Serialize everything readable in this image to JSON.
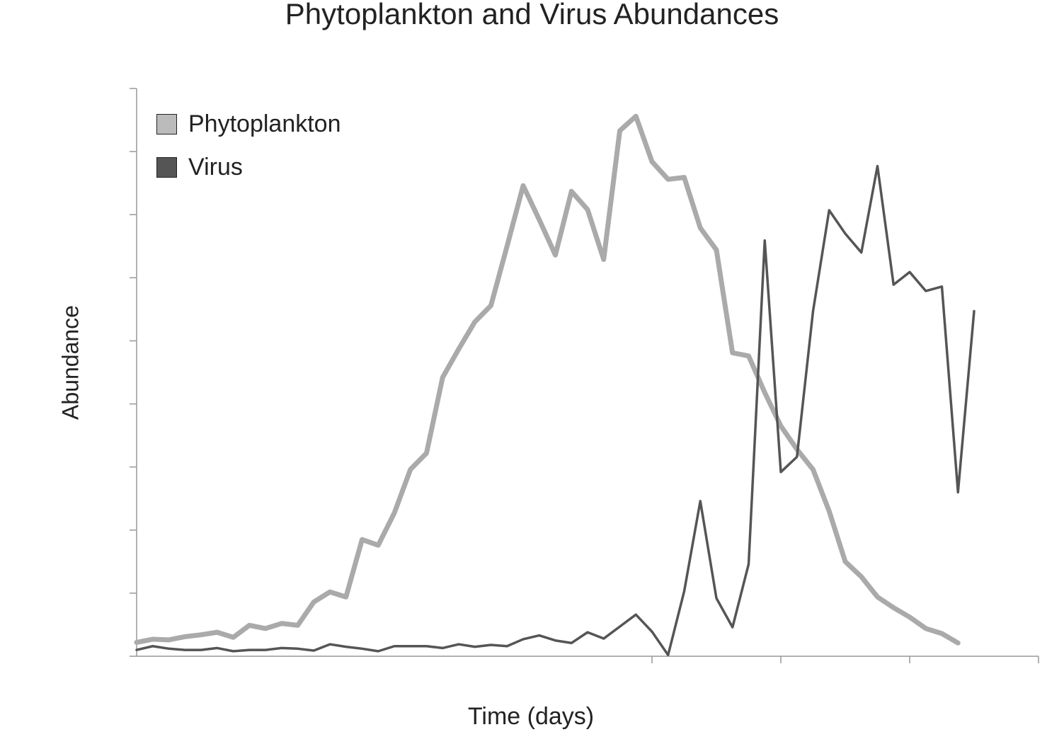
{
  "chart_data": {
    "type": "line",
    "title": "Phytoplankton and Virus Abundances",
    "xlabel": "Time (days)",
    "ylabel": "Abundance",
    "xlim": [
      0,
      56
    ],
    "ylim": [
      0,
      9
    ],
    "x_ticks": [
      32,
      40,
      48,
      56
    ],
    "y_ticks": [
      0,
      1,
      2,
      3,
      4,
      5,
      6,
      7,
      8,
      9
    ],
    "tick_labels_shown": false,
    "grid": false,
    "legend": "top-left",
    "series": [
      {
        "name": "Phytoplankton",
        "color": "#aaaaaa",
        "values": [
          0.22,
          0.27,
          0.26,
          0.31,
          0.34,
          0.38,
          0.3,
          0.49,
          0.44,
          0.52,
          0.49,
          0.86,
          1.02,
          0.94,
          1.85,
          1.76,
          2.27,
          2.96,
          3.22,
          4.42,
          4.87,
          5.3,
          5.56,
          6.5,
          7.46,
          6.92,
          6.36,
          7.37,
          7.08,
          6.29,
          8.33,
          8.56,
          7.84,
          7.56,
          7.59,
          6.79,
          6.44,
          4.81,
          4.76,
          4.18,
          3.65,
          3.28,
          2.96,
          2.3,
          1.5,
          1.26,
          0.94,
          0.77,
          0.62,
          0.44,
          0.36,
          0.21
        ]
      },
      {
        "name": "Virus",
        "color": "#555555",
        "values": [
          0.1,
          0.16,
          0.12,
          0.1,
          0.1,
          0.13,
          0.08,
          0.1,
          0.1,
          0.13,
          0.12,
          0.09,
          0.19,
          0.15,
          0.12,
          0.08,
          0.16,
          0.16,
          0.16,
          0.13,
          0.19,
          0.15,
          0.18,
          0.16,
          0.27,
          0.33,
          0.25,
          0.21,
          0.38,
          0.28,
          0.47,
          0.66,
          0.39,
          0.02,
          1.03,
          2.46,
          0.92,
          0.46,
          1.46,
          6.59,
          2.92,
          3.16,
          5.47,
          7.07,
          6.7,
          6.4,
          7.77,
          5.89,
          6.09,
          5.79,
          5.86,
          2.6,
          5.47
        ]
      }
    ]
  }
}
